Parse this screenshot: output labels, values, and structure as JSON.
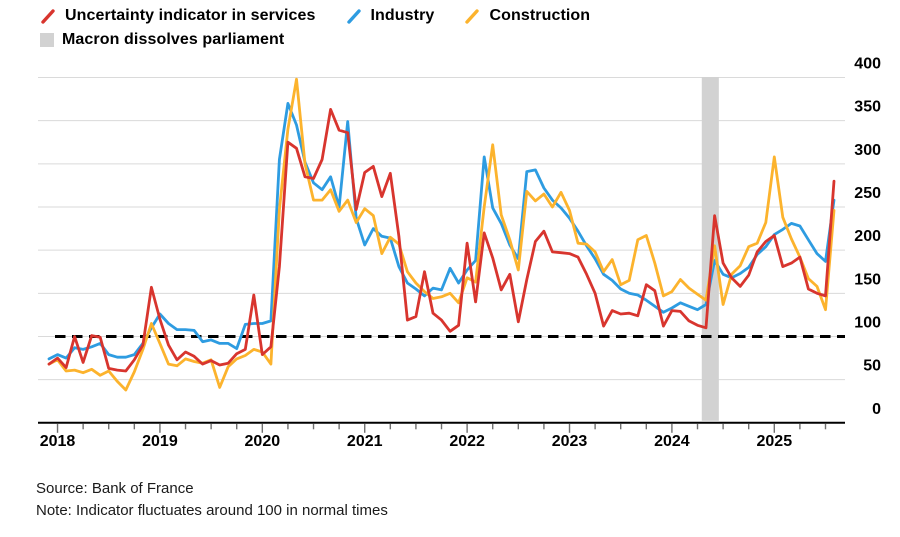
{
  "legend": {
    "items": [
      {
        "label": "Uncertainty indicator in services",
        "color": "#d8352e",
        "type": "line"
      },
      {
        "label": "Industry",
        "color": "#2e9ce1",
        "type": "line"
      },
      {
        "label": "Construction",
        "color": "#fcb32d",
        "type": "line"
      },
      {
        "label": "Macron dissolves parliament",
        "color": "#d2d2d2",
        "type": "band"
      }
    ]
  },
  "footer": {
    "source": "Source: Bank of France",
    "note": "Note: Indicator fluctuates around 100 in normal times"
  },
  "chart_data": {
    "type": "line",
    "x_freq": "monthly",
    "x_months": [
      "2017-12",
      "2018-01",
      "2018-02",
      "2018-03",
      "2018-04",
      "2018-05",
      "2018-06",
      "2018-07",
      "2018-08",
      "2018-09",
      "2018-10",
      "2018-11",
      "2018-12",
      "2019-01",
      "2019-02",
      "2019-03",
      "2019-04",
      "2019-05",
      "2019-06",
      "2019-07",
      "2019-08",
      "2019-09",
      "2019-10",
      "2019-11",
      "2019-12",
      "2020-01",
      "2020-02",
      "2020-03",
      "2020-04",
      "2020-05",
      "2020-06",
      "2020-07",
      "2020-08",
      "2020-09",
      "2020-10",
      "2020-11",
      "2020-12",
      "2021-01",
      "2021-02",
      "2021-03",
      "2021-04",
      "2021-05",
      "2021-06",
      "2021-07",
      "2021-08",
      "2021-09",
      "2021-10",
      "2021-11",
      "2021-12",
      "2022-01",
      "2022-02",
      "2022-03",
      "2022-04",
      "2022-05",
      "2022-06",
      "2022-07",
      "2022-08",
      "2022-09",
      "2022-10",
      "2022-11",
      "2022-12",
      "2023-01",
      "2023-02",
      "2023-03",
      "2023-04",
      "2023-05",
      "2023-06",
      "2023-07",
      "2023-08",
      "2023-09",
      "2023-10",
      "2023-11",
      "2023-12",
      "2024-01",
      "2024-02",
      "2024-03",
      "2024-04",
      "2024-05",
      "2024-06",
      "2024-07",
      "2024-08",
      "2024-09",
      "2024-10",
      "2024-11",
      "2024-12",
      "2025-01",
      "2025-02",
      "2025-03",
      "2025-04",
      "2025-05",
      "2025-06",
      "2025-07",
      "2025-08"
    ],
    "series": [
      {
        "name": "Uncertainty indicator in services",
        "color": "#d8352e",
        "values": [
          68,
          75,
          64,
          100,
          70,
          101,
          99,
          63,
          61,
          60,
          73,
          90,
          157,
          120,
          90,
          73,
          82,
          77,
          68,
          72,
          67,
          69,
          80,
          85,
          148,
          79,
          88,
          181,
          325,
          318,
          285,
          283,
          305,
          363,
          339,
          336,
          247,
          290,
          297,
          262,
          289,
          216,
          119,
          123,
          175,
          127,
          119,
          106,
          113,
          208,
          140,
          220,
          191,
          154,
          172,
          117,
          166,
          210,
          222,
          198,
          197,
          196,
          192,
          172,
          150,
          112,
          130,
          126,
          127,
          124,
          160,
          153,
          112,
          130,
          129,
          118,
          113,
          110,
          240,
          185,
          168,
          158,
          171,
          198,
          210,
          217,
          181,
          185,
          192,
          155,
          150,
          147,
          280
        ]
      },
      {
        "name": "Industry",
        "color": "#2e9ce1",
        "values": [
          74,
          79,
          75,
          87,
          85,
          88,
          92,
          79,
          76,
          76,
          79,
          92,
          110,
          126,
          115,
          108,
          108,
          107,
          94,
          96,
          92,
          92,
          86,
          114,
          115,
          115,
          118,
          305,
          370,
          345,
          302,
          278,
          270,
          285,
          250,
          349,
          237,
          206,
          225,
          216,
          214,
          181,
          162,
          155,
          147,
          156,
          154,
          179,
          162,
          177,
          188,
          308,
          249,
          231,
          206,
          190,
          291,
          293,
          272,
          258,
          249,
          237,
          222,
          205,
          190,
          172,
          165,
          155,
          150,
          148,
          142,
          135,
          128,
          133,
          139,
          135,
          131,
          137,
          188,
          172,
          168,
          173,
          180,
          195,
          204,
          218,
          224,
          231,
          228,
          212,
          196,
          187,
          258
        ]
      },
      {
        "name": "Construction",
        "color": "#fcb32d",
        "values": [
          68,
          73,
          60,
          61,
          58,
          62,
          55,
          60,
          48,
          38,
          59,
          85,
          115,
          92,
          68,
          66,
          74,
          71,
          69,
          73,
          41,
          65,
          74,
          78,
          85,
          82,
          68,
          247,
          340,
          398,
          300,
          258,
          258,
          270,
          245,
          258,
          232,
          248,
          240,
          196,
          215,
          207,
          175,
          162,
          152,
          144,
          146,
          150,
          139,
          168,
          163,
          250,
          322,
          241,
          212,
          177,
          268,
          257,
          265,
          250,
          267,
          246,
          208,
          207,
          198,
          175,
          189,
          160,
          165,
          212,
          217,
          185,
          147,
          152,
          166,
          156,
          149,
          142,
          205,
          137,
          172,
          182,
          204,
          208,
          232,
          308,
          238,
          213,
          192,
          167,
          158,
          131,
          246
        ]
      }
    ],
    "baseline": {
      "value": 100,
      "style": "dashed",
      "color": "#000000"
    },
    "band": {
      "label": "Macron dissolves parliament",
      "from": "2024-05",
      "to": "2024-07",
      "color": "#d2d2d2"
    },
    "ylim": [
      0,
      400
    ],
    "yticks": [
      0,
      50,
      100,
      150,
      200,
      250,
      300,
      350,
      400
    ],
    "year_labels": [
      "2018",
      "2019",
      "2020",
      "2021",
      "2022",
      "2023",
      "2024",
      "2025"
    ],
    "grid": "horizontal",
    "legend_position": "top-left",
    "colors": {
      "gridline": "#dadada",
      "axis": "#000000",
      "tick": "#6f6f6f",
      "label": "#000000",
      "background": "#ffffff"
    }
  }
}
